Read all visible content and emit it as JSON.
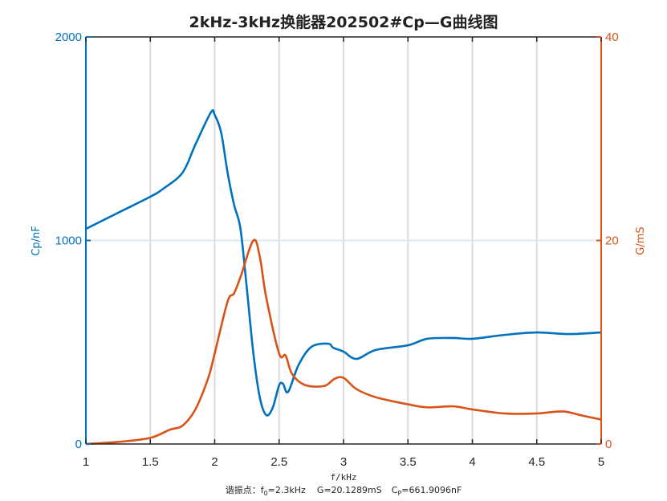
{
  "chart_data": {
    "type": "line",
    "title": "2kHz-3kHz换能器202502#Cp—G曲线图",
    "xlabel": "f/kHz",
    "ylabel": "Cp/nF",
    "ylabel_right": "G/mS",
    "xlim": [
      1,
      5
    ],
    "ylim": [
      0,
      2000
    ],
    "ylim_right": [
      0,
      40
    ],
    "xticks": [
      "1",
      "1.5",
      "2",
      "2.5",
      "3",
      "3.5",
      "4",
      "4.5",
      "5"
    ],
    "yticks_left": [
      "0",
      "1000",
      "2000"
    ],
    "yticks_right": [
      "0",
      "20",
      "40"
    ],
    "grid": "vertical x-grid on; horizontal line at Cp=1000",
    "annotation": "谐振点：f0=2.3kHz  G=20.1289mS  Cp=661.9096nF",
    "series": [
      {
        "name": "Cp",
        "axis": "left",
        "color": "#0072BD",
        "x": [
          1.0,
          1.25,
          1.5,
          1.6,
          1.75,
          1.85,
          1.97,
          2.0,
          2.05,
          2.1,
          2.15,
          2.2,
          2.25,
          2.3,
          2.35,
          2.4,
          2.45,
          2.5,
          2.53,
          2.57,
          2.65,
          2.75,
          2.88,
          2.92,
          3.0,
          3.1,
          3.25,
          3.5,
          3.65,
          3.85,
          4.0,
          4.25,
          4.5,
          4.75,
          5.0
        ],
        "values": [
          1057,
          1136,
          1215,
          1254,
          1333,
          1471,
          1629,
          1617,
          1530,
          1333,
          1176,
          1057,
          761,
          446,
          229,
          142,
          178,
          288,
          296,
          256,
          387,
          477,
          493,
          473,
          454,
          418,
          462,
          485,
          517,
          521,
          517,
          536,
          548,
          540,
          548
        ]
      },
      {
        "name": "G",
        "axis": "right",
        "color": "#D95319",
        "x": [
          1.0,
          1.25,
          1.5,
          1.65,
          1.75,
          1.85,
          1.95,
          2.0,
          2.1,
          2.15,
          2.2,
          2.3,
          2.35,
          2.4,
          2.5,
          2.55,
          2.6,
          2.7,
          2.85,
          2.93,
          3.0,
          3.1,
          3.25,
          3.5,
          3.65,
          3.85,
          4.0,
          4.25,
          4.5,
          4.7,
          4.85,
          5.0
        ],
        "values": [
          0,
          0.2,
          0.6,
          1.4,
          1.8,
          3.4,
          6.5,
          8.9,
          14.0,
          14.8,
          16.4,
          20.0,
          18.4,
          14.4,
          8.9,
          8.7,
          6.9,
          5.8,
          5.7,
          6.4,
          6.5,
          5.4,
          4.6,
          3.9,
          3.6,
          3.7,
          3.4,
          3.0,
          3.0,
          3.2,
          2.8,
          2.4
        ]
      }
    ]
  },
  "labels": {
    "title": "2kHz-3kHz换能器202502#Cp—G曲线图",
    "xlabel": "f/kHz",
    "ylabel_left": "Cp/nF",
    "ylabel_right": "G/mS",
    "note_prefix": "谐振点：f",
    "note_f_sub": "0",
    "note_f_val": "=2.3kHz",
    "note_g": "G=20.1289mS",
    "note_c": "C",
    "note_c_sub": "P",
    "note_c_val": "=661.9096nF"
  },
  "colors": {
    "left_axis": "#0072BD",
    "right_axis": "#D95319",
    "grid": "#E0E0E0",
    "axis_dark": "#262626"
  }
}
